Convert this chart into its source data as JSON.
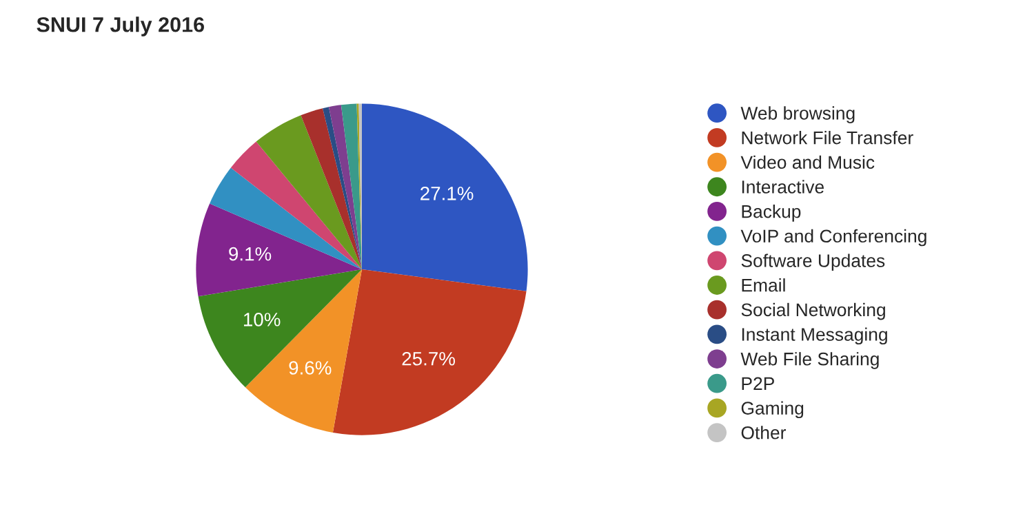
{
  "chart_data": {
    "type": "pie",
    "title": "SNUI 7 July 2016",
    "categories": [
      "Web browsing",
      "Network File Transfer",
      "Video and Music",
      "Interactive",
      "Backup",
      "VoIP and Conferencing",
      "Software Updates",
      "Email",
      "Social Networking",
      "Instant Messaging",
      "Web File Sharing",
      "P2P",
      "Gaming",
      "Other"
    ],
    "values": [
      27.1,
      25.7,
      9.6,
      10,
      9.1,
      4.0,
      3.5,
      5.0,
      2.2,
      0.6,
      1.2,
      1.5,
      0.2,
      0.3
    ],
    "value_labels": [
      "27.1%",
      "25.7%",
      "9.6%",
      "10%",
      "9.1%",
      null,
      null,
      null,
      null,
      null,
      null,
      null,
      null,
      null
    ],
    "colors": [
      "#2e56c2",
      "#c23b22",
      "#f29227",
      "#3d861e",
      "#82248e",
      "#3190c2",
      "#cf4670",
      "#6a9a1f",
      "#a8302c",
      "#2a4d85",
      "#7e3e8f",
      "#3a9a8a",
      "#a8a623",
      "#c4c4c4"
    ],
    "legend": "right"
  }
}
